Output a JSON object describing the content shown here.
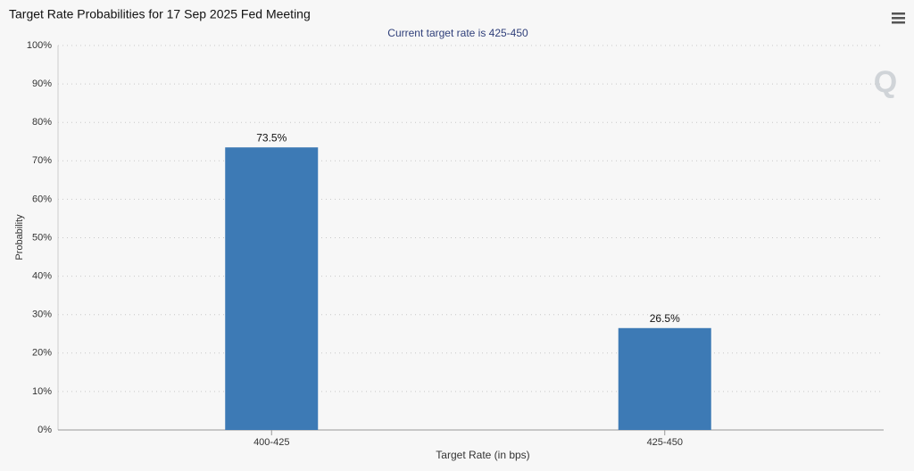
{
  "chart_data": {
    "type": "bar",
    "title": "Target Rate Probabilities for 17 Sep 2025 Fed Meeting",
    "subtitle": "Current target rate is 425-450",
    "x_label": "Target Rate (in bps)",
    "y_label": "Probability",
    "categories": [
      "400-425",
      "425-450"
    ],
    "values": [
      73.5,
      26.5
    ],
    "value_labels": [
      "73.5%",
      "26.5%"
    ],
    "color": "#3d7ab5",
    "ylim": [
      0,
      100
    ],
    "yticks": [
      {
        "value": 0,
        "label": "0%"
      },
      {
        "value": 10,
        "label": "10%"
      },
      {
        "value": 20,
        "label": "20%"
      },
      {
        "value": 30,
        "label": "30%"
      },
      {
        "value": 40,
        "label": "40%"
      },
      {
        "value": 50,
        "label": "50%"
      },
      {
        "value": 60,
        "label": "60%"
      },
      {
        "value": 70,
        "label": "70%"
      },
      {
        "value": 80,
        "label": "80%"
      },
      {
        "value": 90,
        "label": "90%"
      },
      {
        "value": 100,
        "label": "100%"
      }
    ],
    "grid": true
  }
}
